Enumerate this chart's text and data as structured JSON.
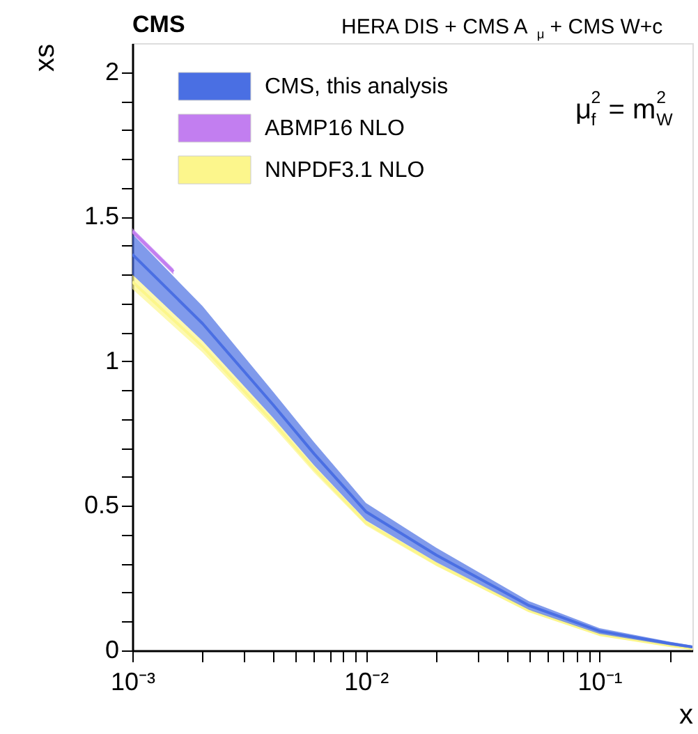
{
  "chart_data": {
    "type": "line",
    "title": "CMS",
    "xlabel": "x",
    "ylabel": "xs",
    "annotations": [
      "HERA DIS + CMS A$_{μ}$ + CMS W+c",
      "μ$_{f}$$^{2}$ = m$_{W}$$^{2}$"
    ],
    "x": [
      0.001,
      0.002,
      0.004,
      0.006,
      0.01,
      0.02,
      0.05,
      0.1,
      0.2,
      0.25
    ],
    "series": [
      {
        "name": "CMS, this analysis",
        "color": "#4a6fe3",
        "values": [
          1.37,
          1.13,
          0.85,
          0.68,
          0.48,
          0.33,
          0.155,
          0.067,
          0.024,
          0.012
        ],
        "upper": [
          1.44,
          1.19,
          0.895,
          0.72,
          0.51,
          0.355,
          0.17,
          0.077,
          0.03,
          0.017
        ],
        "lower": [
          1.3,
          1.07,
          0.805,
          0.64,
          0.45,
          0.305,
          0.14,
          0.057,
          0.018,
          0.007
        ]
      },
      {
        "name": "ABMP16 NLO",
        "color": "#c27ef0",
        "x": [
          0.001,
          0.0015
        ],
        "values": [
          1.45,
          1.31
        ],
        "upper": [
          1.46,
          1.32
        ],
        "lower": [
          1.44,
          1.3
        ]
      },
      {
        "name": "NNPDF3.1 NLO",
        "color": "#fcf68c",
        "values": [
          1.275,
          1.05,
          0.79,
          0.628,
          0.441,
          0.299,
          0.137,
          0.055,
          0.017,
          0.006
        ],
        "upper": [
          1.3,
          1.07,
          0.805,
          0.64,
          0.45,
          0.305,
          0.14,
          0.057,
          0.018,
          0.007
        ],
        "lower": [
          1.25,
          1.03,
          0.775,
          0.615,
          0.432,
          0.292,
          0.133,
          0.053,
          0.016,
          0.005
        ]
      }
    ],
    "log": "x",
    "xlim": [
      0.001,
      0.25
    ],
    "ylim": [
      0,
      2.1
    ],
    "xticks": [
      {
        "value": 0.001,
        "label": "10⁻³"
      },
      {
        "value": 0.002,
        "label": null
      },
      {
        "value": 0.003,
        "label": null
      },
      {
        "value": 0.004,
        "label": null
      },
      {
        "value": 0.005,
        "label": null
      },
      {
        "value": 0.006,
        "label": null
      },
      {
        "value": 0.007,
        "label": null
      },
      {
        "value": 0.008,
        "label": null
      },
      {
        "value": 0.009,
        "label": null
      },
      {
        "value": 0.01,
        "label": "10⁻²"
      },
      {
        "value": 0.02,
        "label": null
      },
      {
        "value": 0.03,
        "label": null
      },
      {
        "value": 0.04,
        "label": null
      },
      {
        "value": 0.05,
        "label": null
      },
      {
        "value": 0.06,
        "label": null
      },
      {
        "value": 0.07,
        "label": null
      },
      {
        "value": 0.08,
        "label": null
      },
      {
        "value": 0.09,
        "label": null
      },
      {
        "value": 0.1,
        "label": "10⁻¹"
      },
      {
        "value": 0.2,
        "label": null
      }
    ],
    "yticks": [
      0,
      {
        "value": 0.1,
        "label": null
      },
      {
        "value": 0.2,
        "label": null
      },
      {
        "value": 0.3,
        "label": null
      },
      {
        "value": 0.4,
        "label": null
      },
      0.5,
      {
        "value": 0.6,
        "label": null
      },
      {
        "value": 0.7,
        "label": null
      },
      {
        "value": 0.8,
        "label": null
      },
      {
        "value": 0.9,
        "label": null
      },
      1,
      {
        "value": 1.1,
        "label": null
      },
      {
        "value": 1.2,
        "label": null
      },
      {
        "value": 1.3,
        "label": null
      },
      {
        "value": 1.4,
        "label": null
      },
      1.5,
      {
        "value": 1.6,
        "label": null
      },
      {
        "value": 1.7,
        "label": null
      },
      {
        "value": 1.8,
        "label": null
      },
      {
        "value": 1.9,
        "label": null
      },
      2
    ],
    "grid": false,
    "legend": "top left"
  }
}
